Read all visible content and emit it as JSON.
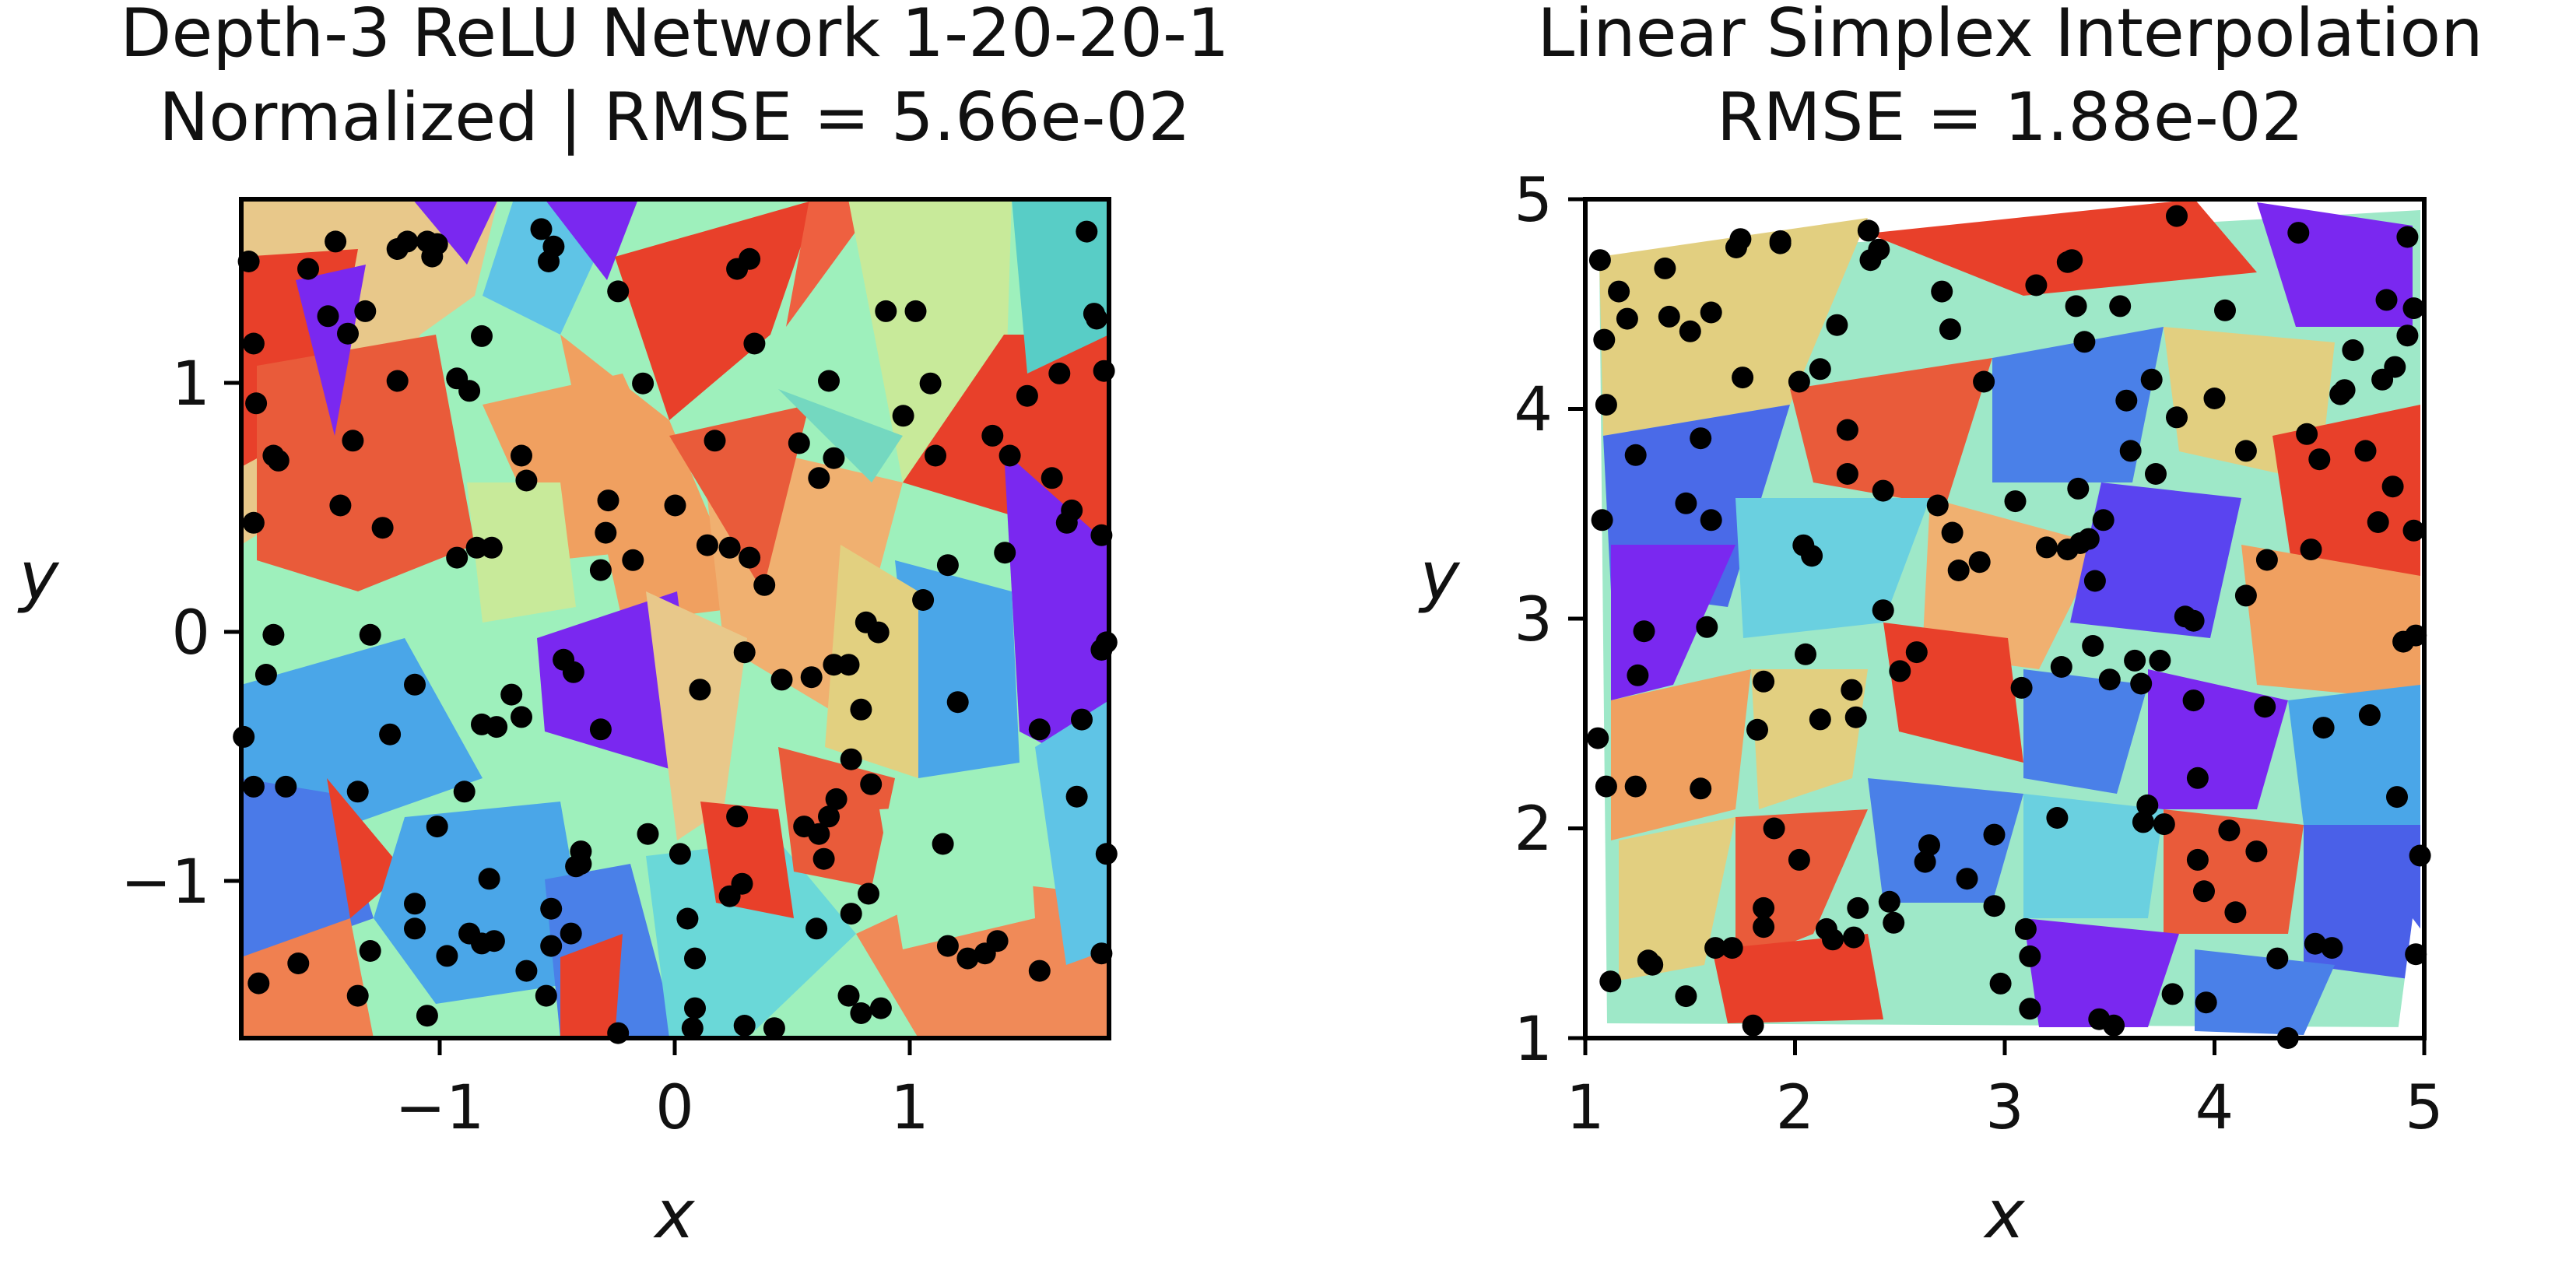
{
  "chart_data": [
    {
      "type": "scatter",
      "title": "Depth-3 ReLU Network 1-20-20-1",
      "subtitle": "Normalized | RMSE = 5.66e-02",
      "xlabel": "x",
      "ylabel": "y",
      "xlim": [
        -1.75,
        1.75
      ],
      "ylim": [
        -1.62,
        1.75
      ],
      "xticks": [
        -1,
        0,
        1
      ],
      "yticks": [
        -1,
        0,
        1
      ],
      "xtick_labels": [
        "−1",
        "0",
        "1"
      ],
      "ytick_labels": [
        "−1",
        "0",
        "1"
      ],
      "background": "piecewise-linear colored regions (rainbow colormap)",
      "point_color": "#000000",
      "points": [
        [
          -1.72,
          1.5
        ],
        [
          -1.7,
          1.17
        ],
        [
          -1.69,
          0.93
        ],
        [
          -1.62,
          0.72
        ],
        [
          -1.6,
          0.7
        ],
        [
          -1.7,
          0.45
        ],
        [
          -1.62,
          0.0
        ],
        [
          -1.65,
          -0.16
        ],
        [
          -1.74,
          -0.41
        ],
        [
          -1.7,
          -0.61
        ],
        [
          -1.57,
          -0.61
        ],
        [
          -1.52,
          -1.32
        ],
        [
          -1.68,
          -1.4
        ],
        [
          -1.48,
          1.47
        ],
        [
          -1.4,
          1.28
        ],
        [
          -1.37,
          1.58
        ],
        [
          -1.32,
          1.21
        ],
        [
          -1.25,
          1.3
        ],
        [
          -1.3,
          0.78
        ],
        [
          -1.35,
          0.52
        ],
        [
          -1.18,
          0.43
        ],
        [
          -1.23,
          0.0
        ],
        [
          -1.28,
          -0.63
        ],
        [
          -1.15,
          -0.4
        ],
        [
          -1.23,
          -1.27
        ],
        [
          -1.28,
          -1.45
        ],
        [
          -1.12,
          1.55
        ],
        [
          -1.08,
          1.58
        ],
        [
          -1.0,
          1.58
        ],
        [
          -0.98,
          1.52
        ],
        [
          -0.96,
          1.57
        ],
        [
          -1.12,
          1.02
        ],
        [
          -0.88,
          1.03
        ],
        [
          -0.83,
          0.98
        ],
        [
          -0.78,
          1.2
        ],
        [
          -0.88,
          0.31
        ],
        [
          -0.8,
          0.35
        ],
        [
          -0.74,
          0.35
        ],
        [
          -1.05,
          -0.2
        ],
        [
          -0.78,
          -0.36
        ],
        [
          -0.72,
          -0.37
        ],
        [
          -0.66,
          -0.24
        ],
        [
          -0.62,
          -0.33
        ],
        [
          -0.96,
          -0.77
        ],
        [
          -0.85,
          -0.63
        ],
        [
          -0.75,
          -0.98
        ],
        [
          -1.05,
          -1.08
        ],
        [
          -1.05,
          -1.18
        ],
        [
          -1.0,
          -1.53
        ],
        [
          -0.92,
          -1.29
        ],
        [
          -0.83,
          -1.2
        ],
        [
          -0.78,
          -1.24
        ],
        [
          -0.73,
          -1.23
        ],
        [
          -0.6,
          -1.35
        ],
        [
          -0.5,
          -1.1
        ],
        [
          -0.52,
          -1.45
        ],
        [
          -0.62,
          0.72
        ],
        [
          -0.6,
          0.62
        ],
        [
          -0.54,
          1.63
        ],
        [
          -0.51,
          1.5
        ],
        [
          -0.49,
          1.56
        ],
        [
          -0.23,
          1.38
        ],
        [
          -0.13,
          1.01
        ],
        [
          -0.3,
          0.26
        ],
        [
          -0.28,
          0.41
        ],
        [
          -0.27,
          0.54
        ],
        [
          -0.17,
          0.3
        ],
        [
          0.0,
          0.52
        ],
        [
          -0.41,
          -0.15
        ],
        [
          -0.45,
          -0.1
        ],
        [
          -0.3,
          -0.38
        ],
        [
          -0.11,
          -0.8
        ],
        [
          -0.4,
          -0.93
        ],
        [
          -0.38,
          -0.87
        ],
        [
          -0.38,
          -0.92
        ],
        [
          -0.42,
          -1.2
        ],
        [
          -0.5,
          -1.25
        ],
        [
          -0.23,
          -1.6
        ],
        [
          0.02,
          -0.88
        ],
        [
          0.05,
          -1.14
        ],
        [
          0.08,
          -1.3
        ],
        [
          0.08,
          -1.5
        ],
        [
          0.07,
          -1.58
        ],
        [
          0.13,
          0.36
        ],
        [
          0.16,
          0.78
        ],
        [
          0.22,
          0.35
        ],
        [
          0.1,
          -0.22
        ],
        [
          0.28,
          -0.07
        ],
        [
          0.25,
          1.47
        ],
        [
          0.3,
          1.51
        ],
        [
          0.32,
          1.17
        ],
        [
          0.3,
          0.31
        ],
        [
          0.36,
          0.2
        ],
        [
          0.5,
          0.77
        ],
        [
          0.58,
          0.63
        ],
        [
          0.62,
          1.02
        ],
        [
          0.64,
          0.71
        ],
        [
          0.43,
          -0.18
        ],
        [
          0.55,
          -0.17
        ],
        [
          0.64,
          -0.12
        ],
        [
          0.7,
          -0.12
        ],
        [
          0.77,
          0.05
        ],
        [
          0.82,
          0.01
        ],
        [
          0.75,
          -0.3
        ],
        [
          0.92,
          0.88
        ],
        [
          0.85,
          1.3
        ],
        [
          0.97,
          1.3
        ],
        [
          1.0,
          0.14
        ],
        [
          0.71,
          -0.5
        ],
        [
          0.79,
          -0.6
        ],
        [
          0.52,
          -0.77
        ],
        [
          0.58,
          -0.8
        ],
        [
          0.6,
          -0.9
        ],
        [
          0.65,
          -0.66
        ],
        [
          0.62,
          -0.73
        ],
        [
          0.57,
          -1.18
        ],
        [
          0.4,
          -1.58
        ],
        [
          0.28,
          -1.57
        ],
        [
          0.25,
          -0.73
        ],
        [
          0.27,
          -1.0
        ],
        [
          0.22,
          -1.05
        ],
        [
          0.71,
          -1.12
        ],
        [
          0.78,
          -1.04
        ],
        [
          0.7,
          -1.45
        ],
        [
          0.75,
          -1.52
        ],
        [
          0.83,
          -1.5
        ],
        [
          1.08,
          -0.84
        ],
        [
          1.1,
          -1.25
        ],
        [
          1.03,
          1.01
        ],
        [
          1.05,
          0.72
        ],
        [
          1.1,
          0.28
        ],
        [
          1.14,
          -0.27
        ],
        [
          1.18,
          -1.3
        ],
        [
          1.25,
          -1.28
        ],
        [
          1.3,
          -1.23
        ],
        [
          1.28,
          0.8
        ],
        [
          1.35,
          0.72
        ],
        [
          1.33,
          0.33
        ],
        [
          1.42,
          0.96
        ],
        [
          1.47,
          -0.38
        ],
        [
          1.47,
          -1.35
        ],
        [
          1.52,
          0.63
        ],
        [
          1.55,
          1.05
        ],
        [
          1.58,
          0.45
        ],
        [
          1.6,
          0.5
        ],
        [
          1.64,
          -0.34
        ],
        [
          1.62,
          -0.65
        ],
        [
          1.66,
          1.62
        ],
        [
          1.69,
          1.29
        ],
        [
          1.7,
          1.27
        ],
        [
          1.73,
          1.06
        ],
        [
          1.72,
          0.4
        ],
        [
          1.74,
          -0.03
        ],
        [
          1.72,
          -0.06
        ],
        [
          1.74,
          -0.88
        ],
        [
          1.72,
          -1.28
        ]
      ]
    },
    {
      "type": "scatter",
      "title": "Linear Simplex Interpolation",
      "subtitle": "RMSE = 1.88e-02",
      "xlabel": "x",
      "ylabel": "y",
      "xlim": [
        1,
        5
      ],
      "ylim": [
        1,
        5
      ],
      "xticks": [
        1,
        2,
        3,
        4,
        5
      ],
      "yticks": [
        1,
        2,
        3,
        4,
        5
      ],
      "xtick_labels": [
        "1",
        "2",
        "3",
        "4",
        "5"
      ],
      "ytick_labels": [
        "1",
        "2",
        "3",
        "4",
        "5"
      ],
      "background": "triangulated regions (Delaunay), rainbow colormap",
      "point_color": "#000000",
      "points": [
        [
          1.07,
          4.71
        ],
        [
          1.09,
          4.33
        ],
        [
          1.1,
          4.02
        ],
        [
          1.08,
          3.47
        ],
        [
          1.06,
          2.43
        ],
        [
          1.1,
          2.2
        ],
        [
          1.12,
          1.27
        ],
        [
          1.16,
          4.56
        ],
        [
          1.2,
          4.43
        ],
        [
          1.24,
          3.78
        ],
        [
          1.28,
          2.94
        ],
        [
          1.25,
          2.73
        ],
        [
          1.24,
          2.2
        ],
        [
          1.32,
          1.35
        ],
        [
          1.3,
          1.37
        ],
        [
          1.38,
          4.67
        ],
        [
          1.4,
          4.44
        ],
        [
          1.5,
          4.37
        ],
        [
          1.48,
          3.55
        ],
        [
          1.55,
          3.86
        ],
        [
          1.6,
          3.47
        ],
        [
          1.58,
          2.96
        ],
        [
          1.55,
          2.19
        ],
        [
          1.48,
          1.2
        ],
        [
          1.6,
          4.46
        ],
        [
          1.62,
          1.43
        ],
        [
          1.7,
          1.43
        ],
        [
          1.72,
          4.77
        ],
        [
          1.74,
          4.81
        ],
        [
          1.75,
          4.15
        ],
        [
          1.8,
          1.06
        ],
        [
          1.85,
          2.7
        ],
        [
          1.82,
          2.47
        ],
        [
          1.9,
          2.0
        ],
        [
          1.85,
          1.62
        ],
        [
          1.85,
          1.53
        ],
        [
          1.93,
          4.8
        ],
        [
          1.93,
          4.79
        ],
        [
          2.02,
          4.13
        ],
        [
          2.04,
          3.35
        ],
        [
          2.08,
          3.3
        ],
        [
          2.05,
          2.83
        ],
        [
          2.02,
          1.85
        ],
        [
          2.12,
          2.52
        ],
        [
          2.15,
          1.52
        ],
        [
          2.18,
          1.47
        ],
        [
          2.2,
          4.4
        ],
        [
          2.12,
          4.19
        ],
        [
          2.25,
          3.9
        ],
        [
          2.25,
          3.69
        ],
        [
          2.27,
          2.66
        ],
        [
          2.29,
          2.53
        ],
        [
          2.28,
          1.48
        ],
        [
          2.3,
          1.62
        ],
        [
          2.35,
          4.85
        ],
        [
          2.36,
          4.71
        ],
        [
          2.4,
          4.76
        ],
        [
          2.42,
          3.61
        ],
        [
          2.42,
          3.04
        ],
        [
          2.47,
          1.55
        ],
        [
          2.45,
          1.65
        ],
        [
          2.5,
          2.75
        ],
        [
          2.58,
          2.84
        ],
        [
          2.62,
          1.84
        ],
        [
          2.64,
          1.92
        ],
        [
          2.7,
          4.56
        ],
        [
          2.74,
          4.38
        ],
        [
          2.68,
          3.54
        ],
        [
          2.75,
          3.41
        ],
        [
          2.78,
          3.23
        ],
        [
          2.88,
          3.27
        ],
        [
          2.82,
          1.76
        ],
        [
          2.9,
          4.13
        ],
        [
          2.95,
          1.97
        ],
        [
          2.95,
          1.63
        ],
        [
          2.98,
          1.26
        ],
        [
          3.05,
          3.56
        ],
        [
          3.08,
          2.67
        ],
        [
          3.1,
          1.52
        ],
        [
          3.12,
          1.39
        ],
        [
          3.12,
          1.14
        ],
        [
          3.15,
          4.59
        ],
        [
          3.2,
          3.34
        ],
        [
          3.3,
          3.33
        ],
        [
          3.27,
          2.77
        ],
        [
          3.25,
          2.05
        ],
        [
          3.3,
          4.7
        ],
        [
          3.32,
          4.71
        ],
        [
          3.34,
          4.49
        ],
        [
          3.38,
          4.32
        ],
        [
          3.36,
          3.36
        ],
        [
          3.35,
          3.62
        ],
        [
          3.4,
          3.38
        ],
        [
          3.43,
          3.18
        ],
        [
          3.42,
          2.87
        ],
        [
          3.47,
          3.47
        ],
        [
          3.5,
          2.71
        ],
        [
          3.45,
          1.09
        ],
        [
          3.52,
          1.06
        ],
        [
          3.55,
          4.49
        ],
        [
          3.58,
          4.04
        ],
        [
          3.6,
          3.8
        ],
        [
          3.62,
          2.8
        ],
        [
          3.65,
          2.69
        ],
        [
          3.66,
          2.03
        ],
        [
          3.68,
          2.11
        ],
        [
          3.7,
          4.14
        ],
        [
          3.72,
          3.69
        ],
        [
          3.74,
          2.8
        ],
        [
          3.76,
          2.02
        ],
        [
          3.8,
          1.21
        ],
        [
          3.82,
          4.92
        ],
        [
          3.82,
          3.96
        ],
        [
          3.86,
          3.01
        ],
        [
          3.9,
          2.99
        ],
        [
          3.9,
          2.61
        ],
        [
          3.92,
          2.24
        ],
        [
          3.92,
          1.85
        ],
        [
          3.95,
          1.7
        ],
        [
          3.96,
          1.17
        ],
        [
          4.0,
          4.05
        ],
        [
          4.05,
          4.47
        ],
        [
          4.07,
          1.99
        ],
        [
          4.1,
          1.6
        ],
        [
          4.15,
          3.8
        ],
        [
          4.15,
          3.11
        ],
        [
          4.2,
          1.89
        ],
        [
          4.24,
          2.58
        ],
        [
          4.25,
          3.28
        ],
        [
          4.3,
          1.38
        ],
        [
          4.35,
          1.0
        ],
        [
          4.4,
          4.84
        ],
        [
          4.44,
          3.88
        ],
        [
          4.46,
          3.33
        ],
        [
          4.48,
          1.45
        ],
        [
          4.5,
          3.76
        ],
        [
          4.52,
          2.48
        ],
        [
          4.56,
          1.43
        ],
        [
          4.6,
          4.07
        ],
        [
          4.62,
          4.09
        ],
        [
          4.66,
          4.28
        ],
        [
          4.72,
          3.8
        ],
        [
          4.74,
          2.54
        ],
        [
          4.78,
          3.46
        ],
        [
          4.8,
          4.14
        ],
        [
          4.82,
          4.52
        ],
        [
          4.85,
          3.63
        ],
        [
          4.86,
          4.2
        ],
        [
          4.87,
          2.15
        ],
        [
          4.9,
          2.89
        ],
        [
          4.92,
          4.82
        ],
        [
          4.92,
          4.35
        ],
        [
          4.95,
          3.42
        ],
        [
          4.96,
          2.92
        ],
        [
          4.95,
          4.48
        ],
        [
          4.98,
          1.87
        ],
        [
          4.96,
          1.4
        ]
      ]
    }
  ]
}
